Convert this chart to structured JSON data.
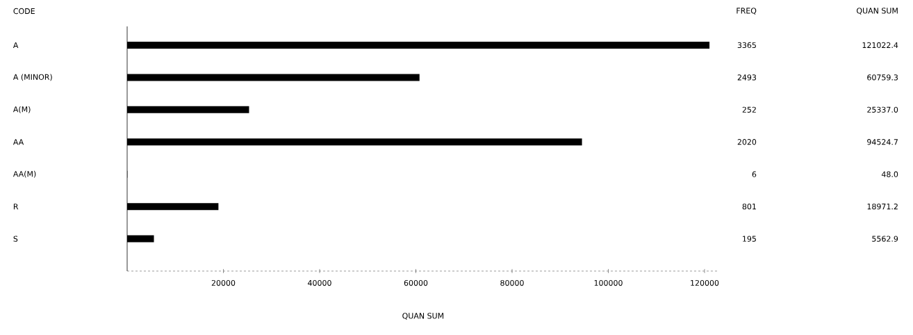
{
  "chart_data": {
    "type": "bar",
    "orientation": "horizontal",
    "ylabel": "CODE",
    "xlabel": "QUAN SUM",
    "categories": [
      "A",
      "A (MINOR)",
      "A(M)",
      "AA",
      "AA(M)",
      "R",
      "S"
    ],
    "values": [
      121022.4,
      60759.3,
      25337.0,
      94524.7,
      48.0,
      18971.2,
      5562.9
    ],
    "value_labels": [
      "121022.4",
      "60759.3",
      "25337.0",
      "94524.7",
      "48.0",
      "18971.2",
      "5562.9"
    ],
    "color": "#000000",
    "xlim": [
      0,
      123000
    ],
    "xticks": [
      20000,
      40000,
      60000,
      80000,
      100000,
      120000
    ],
    "grid": false,
    "annotations": [
      "QUAN SUM",
      "FREQ",
      "3365",
      "2493",
      "252",
      "2020",
      "6",
      "801",
      "195"
    ]
  }
}
